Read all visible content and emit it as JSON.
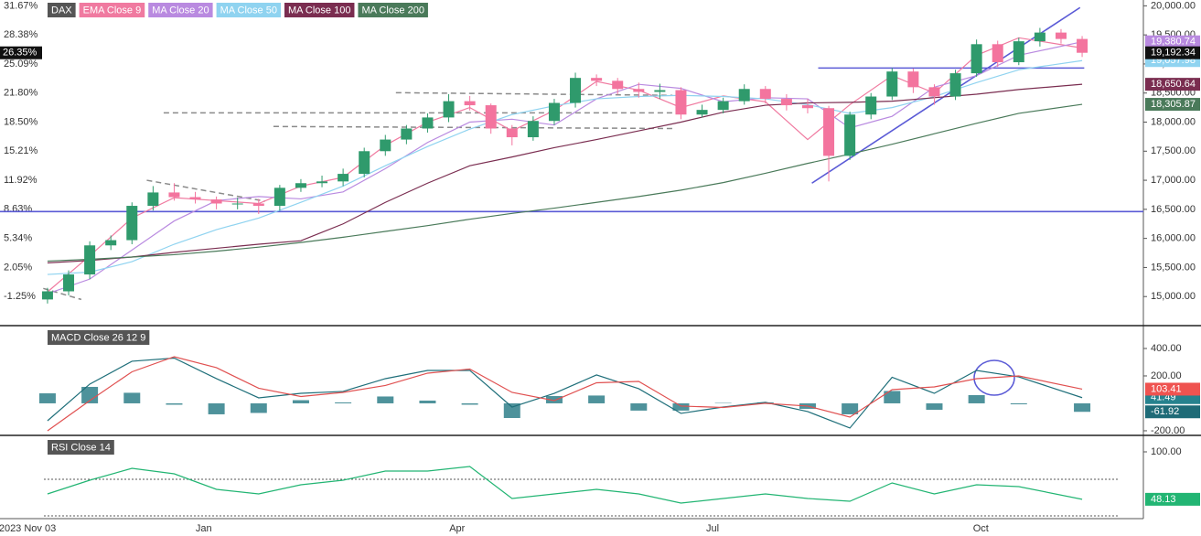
{
  "chart_data": [
    {
      "type": "candlestick",
      "name": "DAX",
      "ticker_color": "#555555",
      "up_color": "#2f9a6c",
      "down_color": "#f3749e",
      "xlim": [
        -2.25,
        51.9
      ],
      "xticks": [
        {
          "value": -0.95,
          "label": "2023 Nov 03"
        },
        {
          "value": 7.4,
          "label": "Jan"
        },
        {
          "value": 19.4,
          "label": "Apr"
        },
        {
          "value": 31.5,
          "label": "Jul"
        },
        {
          "value": 44.2,
          "label": "Oct"
        }
      ],
      "ylim": [
        14500,
        20100
      ],
      "yticks": [
        {
          "value": 20000,
          "label": "20,000.00"
        },
        {
          "value": 19500,
          "label": "19,500.00"
        },
        {
          "value": 19000,
          "label": "19,000.00"
        },
        {
          "value": 18500,
          "label": "18,500.00"
        },
        {
          "value": 18000,
          "label": "18,000.00"
        },
        {
          "value": 17500,
          "label": "17,500.00"
        },
        {
          "value": 17000,
          "label": "17,000.00"
        },
        {
          "value": 16500,
          "label": "16,500.00"
        },
        {
          "value": 16000,
          "label": "16,000.00"
        },
        {
          "value": 15500,
          "label": "15,500.00"
        },
        {
          "value": 15000,
          "label": "15,000.00"
        }
      ],
      "y2lim": [
        -4.54,
        32.33
      ],
      "y2ticks": [
        {
          "value": 31.67,
          "label": "31.67%"
        },
        {
          "value": 28.38,
          "label": "28.38%"
        },
        {
          "value": 25.09,
          "label": "25.09%"
        },
        {
          "value": 21.8,
          "label": "21.80%"
        },
        {
          "value": 18.5,
          "label": "18.50%"
        },
        {
          "value": 15.21,
          "label": "15.21%"
        },
        {
          "value": 11.92,
          "label": "11.92%"
        },
        {
          "value": 8.63,
          "label": "8.63%"
        },
        {
          "value": 5.34,
          "label": "5.34%"
        },
        {
          "value": 2.05,
          "label": "2.05%"
        },
        {
          "value": -1.25,
          "label": "-1.25%"
        }
      ],
      "y2_badge": {
        "value": 26.35,
        "label": "26.35%"
      },
      "close_label": "19,192.34",
      "x": [
        0,
        1,
        2,
        3,
        4,
        5,
        6,
        7,
        8,
        9,
        10,
        11,
        12,
        13,
        14,
        15,
        16,
        17,
        18,
        19,
        20,
        21,
        22,
        23,
        24,
        25,
        26,
        27,
        28,
        29,
        30,
        31,
        32,
        33,
        34,
        35,
        36,
        37,
        38,
        39,
        40,
        41,
        42,
        43,
        44,
        45,
        46,
        47,
        48,
        49
      ],
      "open": [
        14950,
        15090,
        15380,
        15880,
        15970,
        16560,
        16790,
        16710,
        16670,
        16600,
        16600,
        16560,
        16870,
        16950,
        16980,
        17110,
        17500,
        17700,
        17890,
        18080,
        18360,
        18290,
        17890,
        17740,
        18020,
        18330,
        18760,
        18710,
        18570,
        18520,
        18550,
        18130,
        18210,
        18360,
        18570,
        18400,
        18290,
        18240,
        17420,
        18130,
        18440,
        18870,
        18600,
        18440,
        18840,
        19340,
        19030,
        19390,
        19540,
        19430
      ],
      "high": [
        15150,
        15450,
        15950,
        16050,
        16620,
        16900,
        16950,
        16800,
        16720,
        16700,
        16680,
        16920,
        17020,
        17080,
        17200,
        17560,
        17780,
        17950,
        18150,
        18480,
        18450,
        18320,
        17950,
        18100,
        18400,
        18850,
        18820,
        18760,
        18680,
        18660,
        18600,
        18300,
        18420,
        18650,
        18620,
        18480,
        18400,
        18280,
        18180,
        18500,
        18930,
        18920,
        18650,
        18900,
        19420,
        19400,
        19450,
        19620,
        19600,
        19480
      ],
      "low": [
        14880,
        15020,
        15300,
        15800,
        15900,
        16480,
        16650,
        16600,
        16500,
        16500,
        16420,
        16480,
        16800,
        16880,
        16900,
        17050,
        17420,
        17620,
        17820,
        18000,
        18200,
        17800,
        17600,
        17680,
        17950,
        18250,
        18620,
        18480,
        18420,
        18400,
        18050,
        18080,
        18150,
        18300,
        18320,
        18200,
        18150,
        16980,
        17350,
        18050,
        18380,
        18500,
        18300,
        18380,
        18780,
        18950,
        18980,
        19300,
        19350,
        19120
      ],
      "close": [
        15090,
        15380,
        15880,
        15970,
        16560,
        16790,
        16710,
        16670,
        16600,
        16600,
        16560,
        16870,
        16950,
        16980,
        17110,
        17500,
        17700,
        17890,
        18080,
        18360,
        18290,
        17890,
        17740,
        18020,
        18330,
        18760,
        18710,
        18570,
        18520,
        18550,
        18130,
        18210,
        18360,
        18570,
        18400,
        18290,
        18240,
        17420,
        18130,
        18440,
        18870,
        18600,
        18440,
        18840,
        19340,
        19030,
        19390,
        19540,
        19430,
        19192.34
      ],
      "series": [
        {
          "name": "EMA Close 9",
          "color": "#f07aa0",
          "x": [
            0,
            2,
            4,
            6,
            8,
            10,
            12,
            14,
            16,
            18,
            20,
            22,
            24,
            26,
            28,
            30,
            32,
            34,
            36,
            38,
            40,
            42,
            44,
            46,
            49
          ],
          "values": [
            15080,
            15700,
            16350,
            16700,
            16650,
            16600,
            16900,
            17050,
            17600,
            18000,
            18250,
            17850,
            18200,
            18700,
            18550,
            18250,
            18450,
            18350,
            17700,
            18300,
            18800,
            18500,
            19150,
            19450,
            19274.21
          ],
          "last_label": "19,274.21"
        },
        {
          "name": "MA Close 20",
          "color": "#b98ae0",
          "x": [
            0,
            2,
            4,
            6,
            8,
            10,
            12,
            14,
            16,
            18,
            20,
            22,
            24,
            26,
            28,
            30,
            32,
            34,
            36,
            38,
            40,
            42,
            44,
            46,
            49
          ],
          "values": [
            15050,
            15300,
            15800,
            16300,
            16650,
            16720,
            16680,
            16800,
            17200,
            17650,
            18000,
            18050,
            17950,
            18400,
            18650,
            18580,
            18350,
            18420,
            18400,
            17900,
            18100,
            18600,
            18800,
            19150,
            19380.74
          ],
          "last_label": "19,380.74"
        },
        {
          "name": "MA Close 50",
          "color": "#8fd3f0",
          "x": [
            0,
            2,
            4,
            6,
            8,
            10,
            12,
            14,
            16,
            18,
            20,
            22,
            24,
            26,
            28,
            30,
            32,
            34,
            36,
            38,
            40,
            42,
            44,
            46,
            49
          ],
          "values": [
            15380,
            15420,
            15600,
            15900,
            16150,
            16350,
            16620,
            16900,
            17250,
            17580,
            17880,
            18130,
            18280,
            18400,
            18440,
            18460,
            18440,
            18400,
            18300,
            18150,
            18250,
            18440,
            18680,
            18900,
            19057.98
          ],
          "last_label": "19,057.98"
        },
        {
          "name": "MA Close 100",
          "color": "#7a2d50",
          "x": [
            0,
            2,
            4,
            6,
            8,
            10,
            12,
            14,
            16,
            18,
            20,
            22,
            24,
            26,
            28,
            30,
            32,
            34,
            36,
            38,
            40,
            42,
            44,
            46,
            49
          ],
          "values": [
            15580,
            15620,
            15680,
            15760,
            15830,
            15900,
            15960,
            16250,
            16620,
            16950,
            17250,
            17400,
            17560,
            17700,
            17850,
            18000,
            18170,
            18290,
            18330,
            18340,
            18360,
            18420,
            18480,
            18560,
            18650.64
          ],
          "last_label": "18,650.64"
        },
        {
          "name": "MA Close 200",
          "color": "#4a7a5a",
          "x": [
            0,
            2,
            4,
            6,
            8,
            10,
            12,
            14,
            16,
            18,
            20,
            22,
            24,
            26,
            28,
            30,
            32,
            34,
            36,
            38,
            40,
            42,
            44,
            46,
            49
          ],
          "values": [
            15610,
            15640,
            15680,
            15720,
            15780,
            15850,
            15930,
            16020,
            16120,
            16220,
            16330,
            16430,
            16520,
            16620,
            16720,
            16830,
            16960,
            17120,
            17290,
            17450,
            17620,
            17800,
            17980,
            18150,
            18305.87
          ],
          "last_label": "18,305.87"
        }
      ],
      "drawings": [
        {
          "color": "#5a5ad6",
          "dash": false,
          "x": [
            -2.25,
            51.9
          ],
          "y": [
            16462,
            16462
          ]
        },
        {
          "color": "#5a5ad6",
          "dash": false,
          "x": [
            36.5,
            49.1
          ],
          "y": [
            18930,
            18930
          ]
        },
        {
          "color": "#5a5ad6",
          "dash": false,
          "x": [
            36.2,
            48.9
          ],
          "y": [
            16950,
            19970
          ]
        },
        {
          "color": "#8a8a8a",
          "dash": true,
          "x": [
            16.5,
            29.6
          ],
          "y": [
            18506,
            18460
          ]
        },
        {
          "color": "#8a8a8a",
          "dash": true,
          "x": [
            5.5,
            29.6
          ],
          "y": [
            18160,
            18160
          ]
        },
        {
          "color": "#8a8a8a",
          "dash": true,
          "x": [
            10.7,
            29.6
          ],
          "y": [
            17925,
            17890
          ]
        },
        {
          "color": "#8a8a8a",
          "dash": true,
          "x": [
            4.7,
            10.3
          ],
          "y": [
            17000,
            16640
          ]
        },
        {
          "color": "#8a8a8a",
          "dash": true,
          "x": [
            -0.2,
            1.6
          ],
          "y": [
            15140,
            14950
          ]
        }
      ]
    },
    {
      "type": "line",
      "title": "MACD Close 26 12 9",
      "ylim": [
        -227,
        560
      ],
      "yticks": [
        {
          "value": 400,
          "label": "400.00"
        },
        {
          "value": 200,
          "label": "200.00"
        },
        {
          "value": -200,
          "label": "-200.00"
        }
      ],
      "series": [
        {
          "kind": "bar",
          "color": "#2f7f8a",
          "x": [
            0,
            2,
            4,
            6,
            8,
            10,
            12,
            14,
            16,
            18,
            20,
            22,
            24,
            26,
            28,
            30,
            32,
            34,
            36,
            38,
            40,
            42,
            44,
            46,
            49
          ],
          "values": [
            73,
            120,
            77,
            -10,
            -80,
            -70,
            23,
            7,
            50,
            20,
            -10,
            -107,
            53,
            57,
            -53,
            -53,
            3,
            7,
            -40,
            -80,
            90,
            -47,
            60,
            -7,
            -61.92
          ],
          "last_label": "-61.92",
          "badge_color": "#1e6b77"
        },
        {
          "kind": "line",
          "color": "#1f6f7a",
          "x": [
            0,
            2,
            4,
            6,
            8,
            10,
            12,
            14,
            16,
            18,
            20,
            22,
            24,
            26,
            28,
            30,
            32,
            34,
            36,
            38,
            40,
            42,
            44,
            46,
            49
          ],
          "values": [
            -127,
            140,
            307,
            330,
            180,
            40,
            73,
            87,
            180,
            240,
            240,
            -27,
            73,
            207,
            107,
            -73,
            -27,
            7,
            -60,
            -180,
            190,
            73,
            240,
            193,
            41.49
          ],
          "last_label": "41.49",
          "badge_color": "#26828e"
        },
        {
          "kind": "line",
          "color": "#e05050",
          "x": [
            0,
            2,
            4,
            6,
            8,
            10,
            12,
            14,
            16,
            18,
            20,
            22,
            24,
            26,
            28,
            30,
            32,
            34,
            36,
            38,
            40,
            42,
            44,
            46,
            49
          ],
          "values": [
            -200,
            20,
            230,
            340,
            260,
            110,
            50,
            80,
            130,
            220,
            250,
            80,
            20,
            150,
            160,
            -20,
            -30,
            0,
            -20,
            -100,
            100,
            120,
            180,
            200,
            103.41
          ],
          "last_label": "103.41",
          "badge_color": "#ef5350"
        }
      ]
    },
    {
      "type": "line",
      "title": "RSI Close 14",
      "ylim": [
        27,
        117
      ],
      "yticks": [
        {
          "value": 100,
          "label": "100.00"
        }
      ],
      "levels": [
        70,
        30
      ],
      "series": [
        {
          "kind": "line",
          "color": "#22b573",
          "x": [
            0,
            2,
            4,
            6,
            8,
            10,
            12,
            14,
            16,
            18,
            20,
            22,
            24,
            26,
            28,
            30,
            32,
            34,
            36,
            38,
            40,
            42,
            44,
            46,
            49
          ],
          "values": [
            54,
            69,
            82,
            76,
            59,
            54,
            64,
            69,
            79,
            79,
            84,
            49,
            54,
            59,
            54,
            44,
            49,
            54,
            49,
            46,
            66,
            54,
            64,
            62,
            48.13
          ],
          "last_label": "48.13",
          "badge_color": "#22b573"
        }
      ]
    }
  ]
}
